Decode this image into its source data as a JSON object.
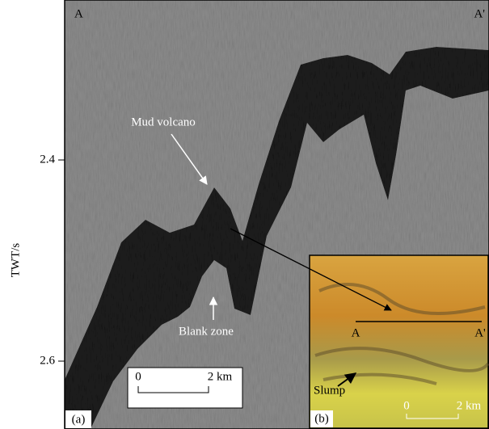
{
  "panel_a": {
    "label": "(a)",
    "left_end": "A",
    "right_end": "A'",
    "axis": {
      "label": "TWT/s",
      "ticks": [
        2.4,
        2.6
      ]
    },
    "annotations": [
      "Mud volcano",
      "Blank zone"
    ],
    "scale_bar": {
      "start": "0",
      "end": "2 km"
    }
  },
  "panel_b": {
    "label": "(b)",
    "left_end": "A",
    "right_end": "A'",
    "annotation": "Slump",
    "scale_bar": {
      "start": "0",
      "end": "2 km"
    }
  }
}
